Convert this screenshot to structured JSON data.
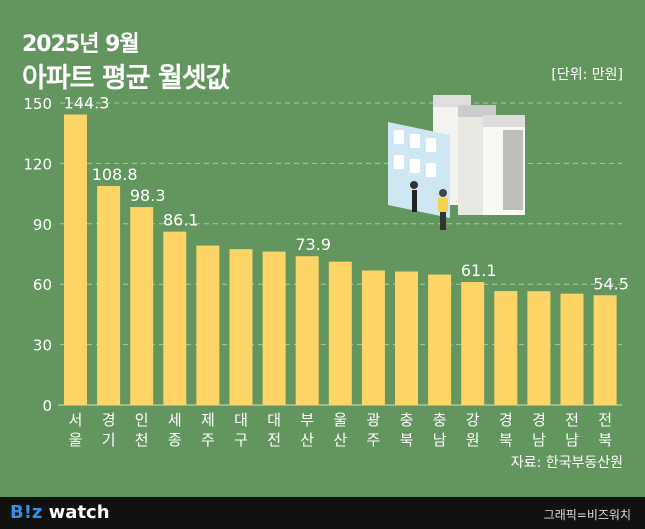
{
  "header": {
    "subtitle": "2025년 9월",
    "title": "아파트 평균 월셋값",
    "unit": "[단위: 만원]"
  },
  "source": "자료: 한국부동산원",
  "footer": {
    "logo_b": "B!z",
    "logo_rest": " watch",
    "credit": "그래픽=비즈워치"
  },
  "colors": {
    "background": "#62965e",
    "bar": "#fdd466",
    "footer": "#111111"
  },
  "chart_data": {
    "type": "bar",
    "title": "아파트 평균 월셋값",
    "ylabel": "만원",
    "ylim": [
      0,
      150
    ],
    "yticks": [
      0,
      30,
      60,
      90,
      120,
      150
    ],
    "grid": true,
    "categories": [
      [
        "서",
        "울"
      ],
      [
        "경",
        "기"
      ],
      [
        "인",
        "천"
      ],
      [
        "세",
        "종"
      ],
      [
        "제",
        "주"
      ],
      [
        "대",
        "구"
      ],
      [
        "대",
        "전"
      ],
      [
        "부",
        "산"
      ],
      [
        "울",
        "산"
      ],
      [
        "광",
        "주"
      ],
      [
        "충",
        "북"
      ],
      [
        "충",
        "남"
      ],
      [
        "강",
        "원"
      ],
      [
        "경",
        "북"
      ],
      [
        "경",
        "남"
      ],
      [
        "전",
        "남"
      ],
      [
        "전",
        "북"
      ]
    ],
    "values": [
      144.3,
      108.8,
      98.3,
      86.1,
      79.2,
      77.4,
      76.2,
      73.9,
      71.2,
      66.8,
      66.3,
      64.8,
      61.1,
      56.6,
      56.5,
      55.3,
      54.5
    ],
    "data_labels": [
      "144.3",
      "108.8",
      "98.3",
      "86.1",
      null,
      null,
      null,
      "73.9",
      null,
      null,
      null,
      null,
      "61.1",
      null,
      null,
      null,
      "54.5"
    ]
  }
}
